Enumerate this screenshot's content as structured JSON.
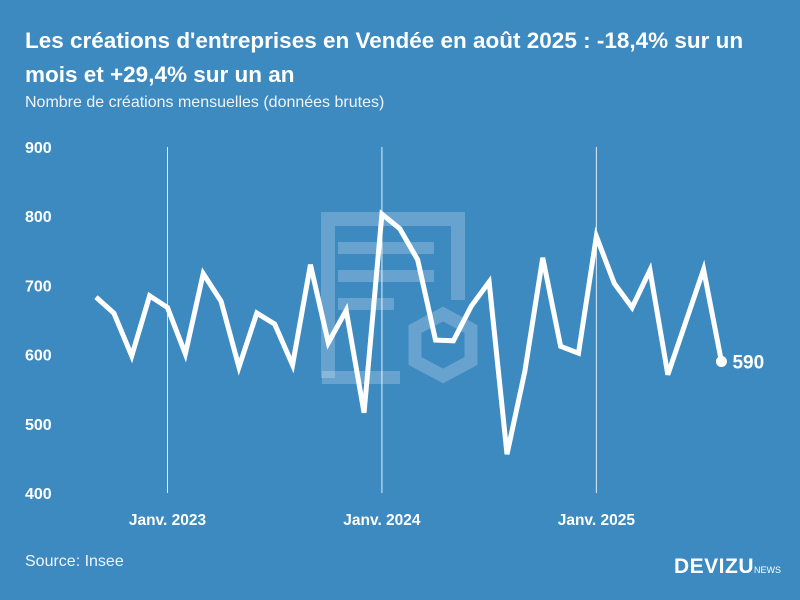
{
  "header": {
    "title": "Les créations d'entreprises en Vendée en août 2025 : -18,4% sur un mois et +29,4% sur un an",
    "subtitle": "Nombre de créations mensuelles (données brutes)"
  },
  "footer": {
    "source": "Source: Insee",
    "logo_main": "DEVIZU",
    "logo_sub": "NEWS"
  },
  "colors": {
    "background": "#3d8ac0",
    "line": "#ffffff"
  },
  "chart_data": {
    "type": "line",
    "title": "Les créations d'entreprises en Vendée en août 2025 : -18,4% sur un mois et +29,4% sur un an",
    "xlabel": "",
    "ylabel": "Nombre de créations mensuelles (données brutes)",
    "ylim": [
      400,
      900
    ],
    "yticks": [
      400,
      500,
      600,
      700,
      800,
      900
    ],
    "xticks": [
      {
        "label": "Janv. 2023",
        "index": 4
      },
      {
        "label": "Janv. 2024",
        "index": 16
      },
      {
        "label": "Janv. 2025",
        "index": 28
      }
    ],
    "x": [
      "2022-09",
      "2022-10",
      "2022-11",
      "2022-12",
      "2023-01",
      "2023-02",
      "2023-03",
      "2023-04",
      "2023-05",
      "2023-06",
      "2023-07",
      "2023-08",
      "2023-09",
      "2023-10",
      "2023-11",
      "2023-12",
      "2024-01",
      "2024-02",
      "2024-03",
      "2024-04",
      "2024-05",
      "2024-06",
      "2024-07",
      "2024-08",
      "2024-09",
      "2024-10",
      "2024-11",
      "2024-12",
      "2025-01",
      "2025-02",
      "2025-03",
      "2025-04",
      "2025-05",
      "2025-06",
      "2025-07",
      "2025-08"
    ],
    "series": [
      {
        "name": "Créations d'entreprises",
        "values": [
          683,
          660,
          598,
          685,
          668,
          601,
          717,
          677,
          582,
          660,
          644,
          585,
          730,
          617,
          664,
          516,
          803,
          782,
          737,
          621,
          620,
          670,
          705,
          456,
          576,
          740,
          612,
          602,
          771,
          703,
          668,
          722,
          571,
          647,
          723,
          590
        ]
      }
    ],
    "end_label": "590",
    "grid": "vertical at January"
  }
}
